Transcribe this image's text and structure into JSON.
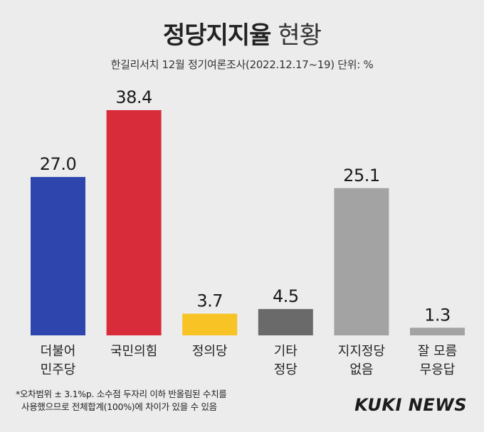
{
  "title_main": "정당지지율",
  "title_sub": "현황",
  "subtitle": "한길리서치 12월 정기여론조사(2022.12.17~19) 단위: %",
  "chart_data": {
    "type": "bar",
    "title": "정당지지율 현황",
    "subtitle": "한길리서치 12월 정기여론조사(2022.12.17~19) 단위: %",
    "categories": [
      [
        "더불어",
        "민주당"
      ],
      [
        "국민의힘"
      ],
      [
        "정의당"
      ],
      [
        "기타",
        "정당"
      ],
      [
        "지지정당",
        "없음"
      ],
      [
        "잘 모름",
        "무응답"
      ]
    ],
    "values": [
      27.0,
      38.4,
      3.7,
      4.5,
      25.1,
      1.3
    ],
    "value_labels": [
      "27.0",
      "38.4",
      "3.7",
      "4.5",
      "25.1",
      "1.3"
    ],
    "colors": [
      "#2d45ac",
      "#d92c3a",
      "#f7c325",
      "#6a6a6a",
      "#a3a3a3",
      "#a3a3a3"
    ],
    "ylim": [
      0,
      38.4
    ],
    "grid": false,
    "legend": "none"
  },
  "footnote": [
    "*오차범위 ± 3.1%p. 소수점 두자리 이하 반올림된 수치를",
    "사용했으므로 전체합계(100%)에 차이가 있을 수 있음"
  ],
  "logo": "KUKI NEWS"
}
